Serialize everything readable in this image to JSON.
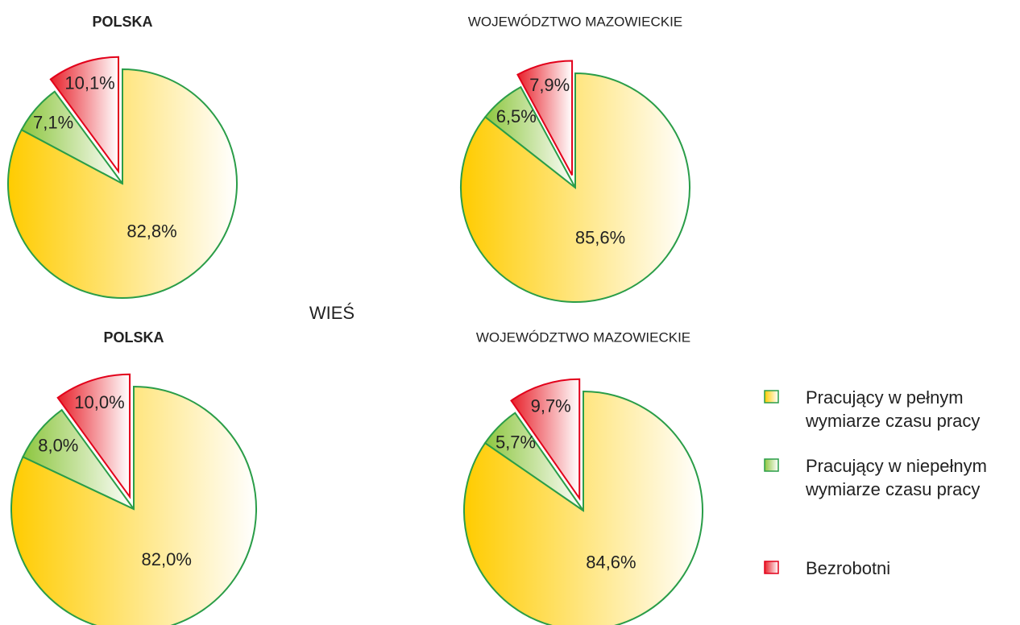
{
  "heading": "WIEŚ",
  "legend": {
    "names": [
      "Pracujący w pełnym wymiarze czasu pracy",
      "Pracujący w niepełnym wymiarze czasu pracy",
      "Bezrobotni"
    ],
    "colors": [
      "#ffcc00",
      "#8dc63f",
      "#e8202a"
    ],
    "strokes": [
      "#2a9d48",
      "#2a9d48",
      "#e2001a"
    ]
  },
  "chart_data": [
    {
      "type": "pie",
      "title": "POLSKA",
      "values": [
        82.8,
        7.1,
        10.1
      ],
      "value_labels": [
        "82,8%",
        "7,1%",
        "10,1%"
      ]
    },
    {
      "type": "pie",
      "title": "WOJEWÓDZTWO MAZOWIECKIE",
      "values": [
        85.6,
        6.5,
        7.9
      ],
      "value_labels": [
        "85,6%",
        "6,5%",
        "7,9%"
      ]
    },
    {
      "type": "pie",
      "title": "POLSKA",
      "values": [
        82.0,
        8.0,
        10.0
      ],
      "value_labels": [
        "82,0%",
        "8,0%",
        "10,0%"
      ]
    },
    {
      "type": "pie",
      "title": "WOJEWÓDZTWO MAZOWIECKIE",
      "values": [
        84.6,
        5.7,
        9.7
      ],
      "value_labels": [
        "84,6%",
        "5,7%",
        "9,7%"
      ]
    }
  ]
}
